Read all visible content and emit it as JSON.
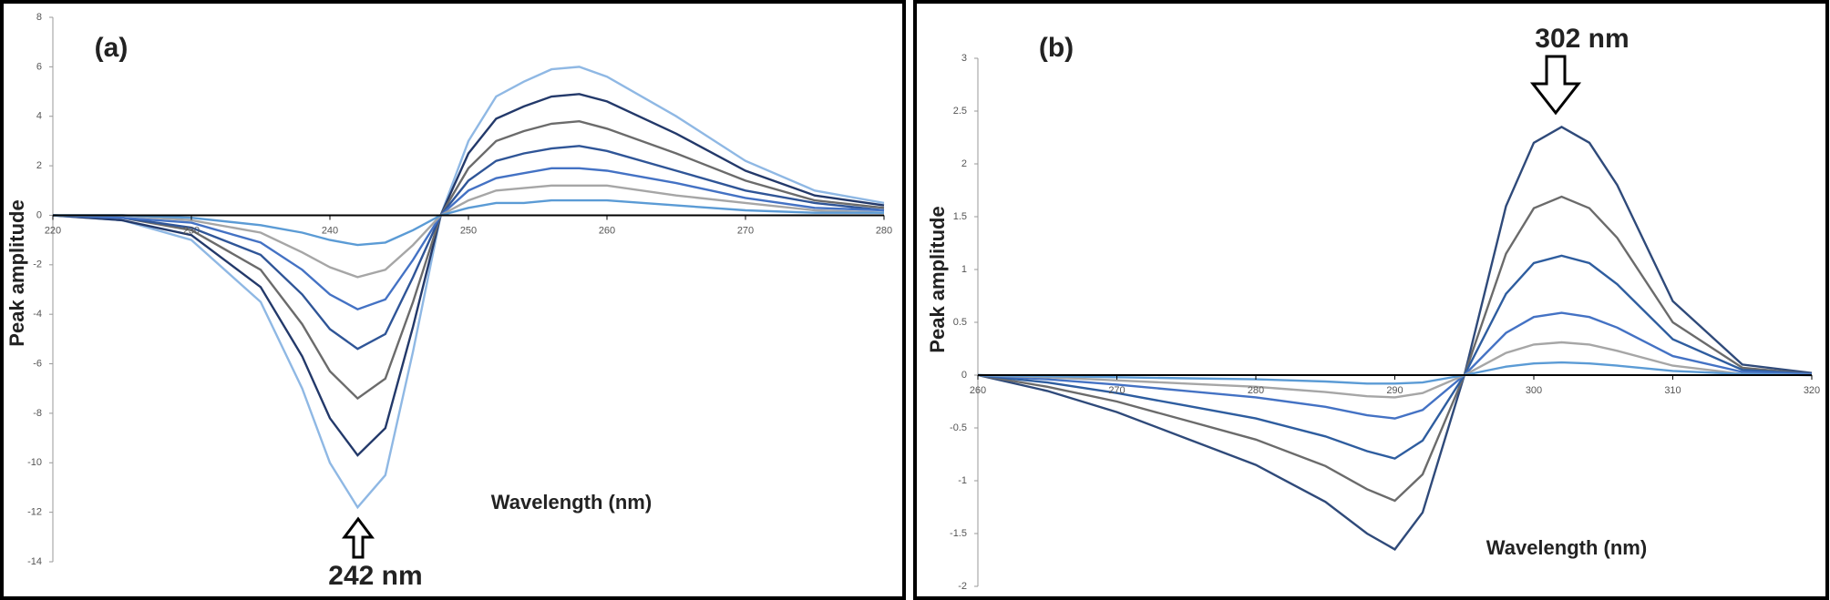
{
  "chart_data": [
    {
      "type": "line",
      "panel_label": "(a)",
      "annotation": "242 nm",
      "xlabel": "Wavelength (nm)",
      "ylabel": "Peak amplitude",
      "x": [
        220,
        225,
        230,
        235,
        238,
        240,
        242,
        244,
        246,
        248,
        250,
        252,
        254,
        256,
        258,
        260,
        265,
        270,
        275,
        280
      ],
      "xlim": [
        220,
        280
      ],
      "xticks": [
        220,
        230,
        240,
        250,
        260,
        270,
        280
      ],
      "ylim": [
        -14,
        8
      ],
      "yticks": [
        -14,
        -12,
        -10,
        -8,
        -6,
        -4,
        -2,
        0,
        2,
        4,
        6,
        8
      ],
      "grid": false,
      "series": [
        {
          "color": "#8fb8e4",
          "values": [
            0,
            -0.2,
            -1.0,
            -3.5,
            -7.0,
            -10.0,
            -11.8,
            -10.5,
            -5.5,
            0,
            3.0,
            4.8,
            5.4,
            5.9,
            6.0,
            5.6,
            4.0,
            2.2,
            1.0,
            0.5
          ]
        },
        {
          "color": "#23396a",
          "values": [
            0,
            -0.2,
            -0.8,
            -2.9,
            -5.7,
            -8.2,
            -9.7,
            -8.6,
            -4.5,
            0,
            2.5,
            3.9,
            4.4,
            4.8,
            4.9,
            4.6,
            3.3,
            1.8,
            0.8,
            0.4
          ]
        },
        {
          "color": "#6b6b6b",
          "values": [
            0,
            -0.1,
            -0.6,
            -2.2,
            -4.4,
            -6.3,
            -7.4,
            -6.6,
            -3.5,
            0,
            1.9,
            3.0,
            3.4,
            3.7,
            3.8,
            3.5,
            2.5,
            1.4,
            0.6,
            0.3
          ]
        },
        {
          "color": "#2f5597",
          "values": [
            0,
            -0.1,
            -0.5,
            -1.6,
            -3.2,
            -4.6,
            -5.4,
            -4.8,
            -2.5,
            0,
            1.4,
            2.2,
            2.5,
            2.7,
            2.8,
            2.6,
            1.8,
            1.0,
            0.5,
            0.2
          ]
        },
        {
          "color": "#4472c4",
          "values": [
            0,
            -0.1,
            -0.3,
            -1.1,
            -2.2,
            -3.2,
            -3.8,
            -3.4,
            -1.8,
            0,
            1.0,
            1.5,
            1.7,
            1.9,
            1.9,
            1.8,
            1.3,
            0.7,
            0.3,
            0.2
          ]
        },
        {
          "color": "#a6a6a6",
          "values": [
            0,
            0,
            -0.2,
            -0.7,
            -1.5,
            -2.1,
            -2.5,
            -2.2,
            -1.2,
            0,
            0.6,
            1.0,
            1.1,
            1.2,
            1.2,
            1.2,
            0.8,
            0.5,
            0.2,
            0.1
          ]
        },
        {
          "color": "#5b9bd5",
          "values": [
            0,
            0,
            -0.1,
            -0.4,
            -0.7,
            -1.0,
            -1.2,
            -1.1,
            -0.6,
            0,
            0.3,
            0.5,
            0.5,
            0.6,
            0.6,
            0.6,
            0.4,
            0.2,
            0.1,
            0.1
          ]
        }
      ]
    },
    {
      "type": "line",
      "panel_label": "(b)",
      "annotation": "302 nm",
      "xlabel": "Wavelength (nm)",
      "ylabel": "Peak amplitude",
      "x": [
        260,
        265,
        270,
        275,
        280,
        285,
        288,
        290,
        292,
        295,
        298,
        300,
        302,
        304,
        306,
        310,
        315,
        320
      ],
      "xlim": [
        260,
        320
      ],
      "xticks": [
        260,
        270,
        280,
        290,
        300,
        310,
        320
      ],
      "ylim": [
        -2,
        3
      ],
      "yticks": [
        -2,
        -1.5,
        -1,
        -0.5,
        0,
        0.5,
        1,
        1.5,
        2,
        2.5,
        3
      ],
      "grid": false,
      "series": [
        {
          "color": "#2f4a7a",
          "values": [
            0,
            -0.15,
            -0.35,
            -0.6,
            -0.85,
            -1.2,
            -1.5,
            -1.65,
            -1.3,
            0,
            1.6,
            2.2,
            2.35,
            2.2,
            1.8,
            0.7,
            0.1,
            0.02
          ]
        },
        {
          "color": "#6b6b6b",
          "values": [
            0,
            -0.11,
            -0.25,
            -0.43,
            -0.61,
            -0.86,
            -1.08,
            -1.19,
            -0.94,
            0,
            1.15,
            1.58,
            1.69,
            1.58,
            1.3,
            0.5,
            0.07,
            0.01
          ]
        },
        {
          "color": "#2e5d9f",
          "values": [
            0,
            -0.07,
            -0.17,
            -0.29,
            -0.41,
            -0.58,
            -0.72,
            -0.79,
            -0.62,
            0,
            0.77,
            1.06,
            1.13,
            1.06,
            0.86,
            0.34,
            0.05,
            0.01
          ]
        },
        {
          "color": "#4472c4",
          "values": [
            0,
            -0.04,
            -0.09,
            -0.15,
            -0.21,
            -0.3,
            -0.38,
            -0.41,
            -0.33,
            0,
            0.4,
            0.55,
            0.59,
            0.55,
            0.45,
            0.18,
            0.03,
            0.01
          ]
        },
        {
          "color": "#a6a6a6",
          "values": [
            0,
            -0.02,
            -0.05,
            -0.08,
            -0.11,
            -0.16,
            -0.2,
            -0.21,
            -0.17,
            0,
            0.21,
            0.29,
            0.31,
            0.29,
            0.23,
            0.09,
            0.01,
            0
          ]
        },
        {
          "color": "#5b9bd5",
          "values": [
            0,
            -0.01,
            -0.02,
            -0.03,
            -0.04,
            -0.06,
            -0.08,
            -0.08,
            -0.07,
            0,
            0.08,
            0.11,
            0.12,
            0.11,
            0.09,
            0.04,
            0.01,
            0
          ]
        }
      ]
    }
  ]
}
